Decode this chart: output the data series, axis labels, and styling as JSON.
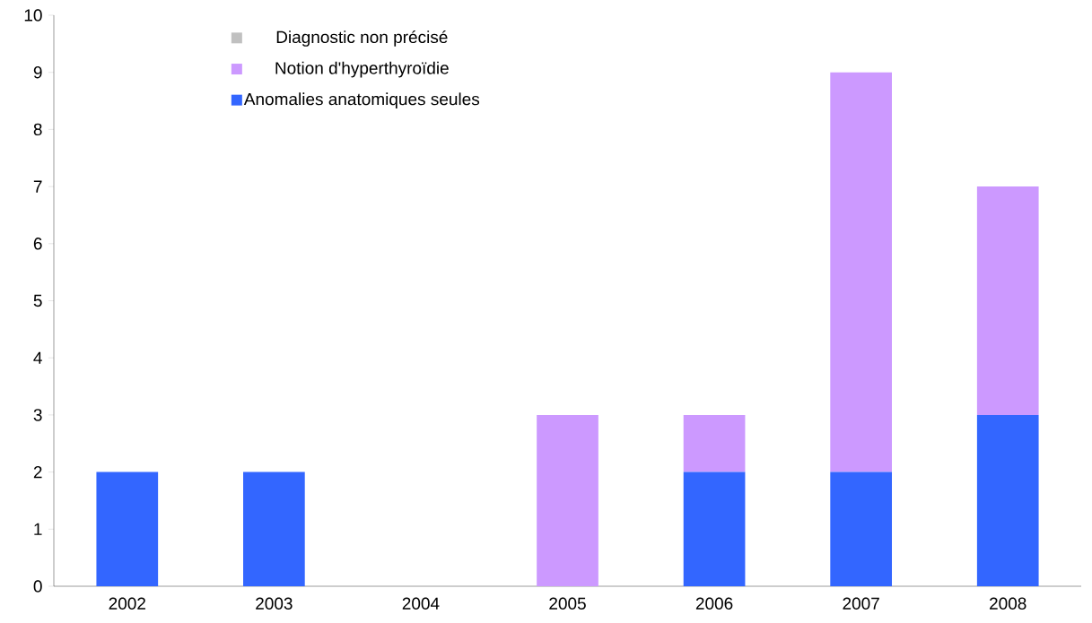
{
  "chart_data": {
    "type": "bar",
    "stacked": true,
    "categories": [
      "2002",
      "2003",
      "2004",
      "2005",
      "2006",
      "2007",
      "2008"
    ],
    "series": [
      {
        "name": "Anomalies anatomiques seules",
        "color": "#3366ff",
        "values": [
          2,
          2,
          0,
          0,
          2,
          2,
          3
        ]
      },
      {
        "name": "Notion d'hyperthyroïdie",
        "color": "#cc99ff",
        "values": [
          0,
          0,
          0,
          3,
          1,
          7,
          4
        ]
      },
      {
        "name": "Diagnostic non précisé",
        "color": "#c0c0c0",
        "values": [
          0,
          0,
          0,
          0,
          0,
          0,
          0
        ]
      }
    ],
    "ylim": [
      0,
      10
    ],
    "yticks": [
      0,
      1,
      2,
      3,
      4,
      5,
      6,
      7,
      8,
      9,
      10
    ],
    "grid": false,
    "legend": "top left"
  }
}
